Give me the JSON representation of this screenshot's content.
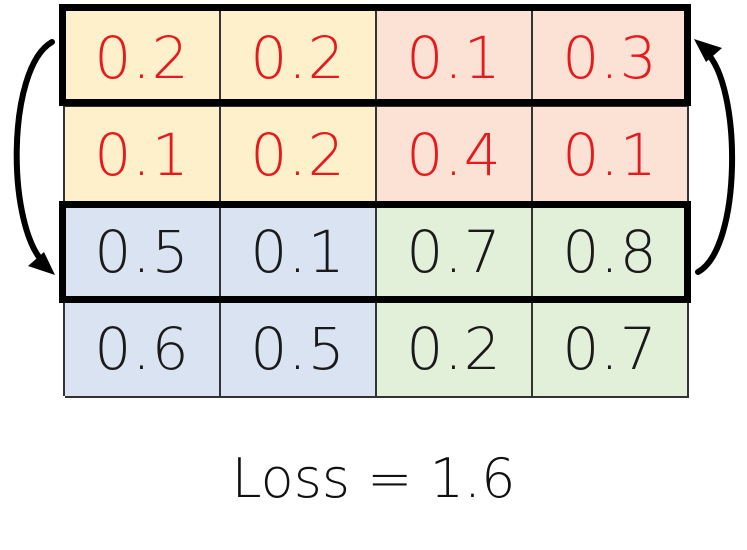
{
  "grid": {
    "rows": [
      {
        "cells": [
          {
            "value": "0.2",
            "fill": "#FFF0CC",
            "text_color": "#E8191C"
          },
          {
            "value": "0.2",
            "fill": "#FFF0CC",
            "text_color": "#E8191C"
          },
          {
            "value": "0.1",
            "fill": "#FCE2D4",
            "text_color": "#E8191C"
          },
          {
            "value": "0.3",
            "fill": "#FCE2D4",
            "text_color": "#E8191C"
          }
        ]
      },
      {
        "cells": [
          {
            "value": "0.1",
            "fill": "#FFF0CC",
            "text_color": "#E8191C"
          },
          {
            "value": "0.2",
            "fill": "#FFF0CC",
            "text_color": "#E8191C"
          },
          {
            "value": "0.4",
            "fill": "#FCE2D4",
            "text_color": "#E8191C"
          },
          {
            "value": "0.1",
            "fill": "#FCE2D4",
            "text_color": "#E8191C"
          }
        ]
      },
      {
        "cells": [
          {
            "value": "0.5",
            "fill": "#DAE3F2",
            "text_color": "#1A1A1A"
          },
          {
            "value": "0.1",
            "fill": "#DAE3F2",
            "text_color": "#1A1A1A"
          },
          {
            "value": "0.7",
            "fill": "#E2EFD9",
            "text_color": "#1A1A1A"
          },
          {
            "value": "0.8",
            "fill": "#E2EFD9",
            "text_color": "#1A1A1A"
          }
        ]
      },
      {
        "cells": [
          {
            "value": "0.6",
            "fill": "#DAE3F2",
            "text_color": "#1A1A1A"
          },
          {
            "value": "0.5",
            "fill": "#DAE3F2",
            "text_color": "#1A1A1A"
          },
          {
            "value": "0.2",
            "fill": "#E2EFD9",
            "text_color": "#1A1A1A"
          },
          {
            "value": "0.7",
            "fill": "#E2EFD9",
            "text_color": "#1A1A1A"
          }
        ]
      }
    ],
    "highlighted_rows": [
      0,
      2
    ],
    "swap_arrows": [
      {
        "side": "left",
        "from_row": 0,
        "to_row": 2
      },
      {
        "side": "right",
        "from_row": 2,
        "to_row": 0
      }
    ]
  },
  "loss_label": "Loss = 1.6"
}
